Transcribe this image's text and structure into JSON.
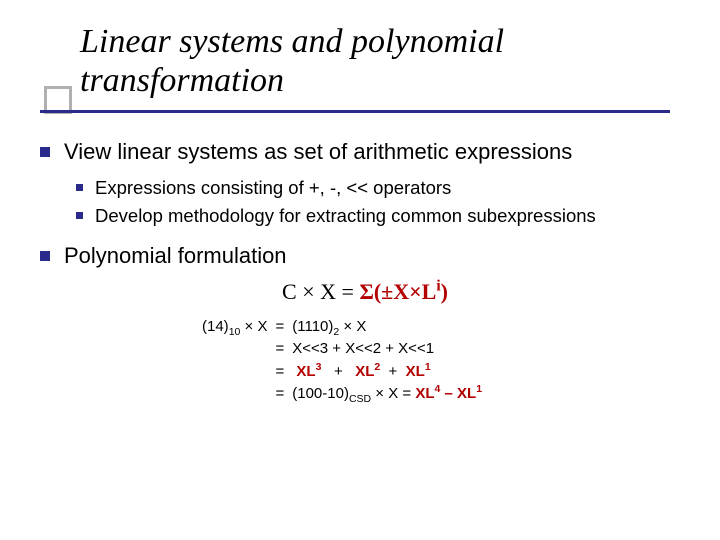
{
  "title": "Linear systems and polynomial transformation",
  "bullets": {
    "b1": "View linear systems as set of arithmetic expressions",
    "b1a": "Expressions consisting of +, -, << operators",
    "b1b": "Develop methodology for extracting common subexpressions",
    "b2": "Polynomial formulation"
  },
  "formula": {
    "lhs": "C × X = ",
    "rhs_sigma": "Σ",
    "rhs_body": "(±X×L",
    "rhs_sup": "i",
    "rhs_close": ")"
  },
  "deriv": {
    "lhs_pre": "(14)",
    "lhs_sub1": "10",
    "lhs_mid": " × X",
    "r1_pre": "(1110)",
    "r1_sub": "2",
    "r1_post": " × X",
    "r2": "X<<3 + X<<2  +   X<<1",
    "r3_a": "XL",
    "r3_a_sup": "3",
    "r3_b": "XL",
    "r3_b_sup": "2",
    "r3_c": "XL",
    "r3_c_sup": "1",
    "r4_pre": "(100‑10)",
    "r4_sub": "CSD",
    "r4_mid": " × X = ",
    "r4_a": "XL",
    "r4_a_sup": "4",
    "r4_dash": " – ",
    "r4_b": "XL",
    "r4_b_sup": "1"
  },
  "colors": {
    "bullet": "#2a2a8a",
    "rule": "#2a2a8a",
    "box": "#b0b0b0",
    "red": "#b30000"
  },
  "fontsizes": {
    "title": 34,
    "l1": 22,
    "l2": 18.5,
    "formula": 22,
    "deriv": 15
  }
}
